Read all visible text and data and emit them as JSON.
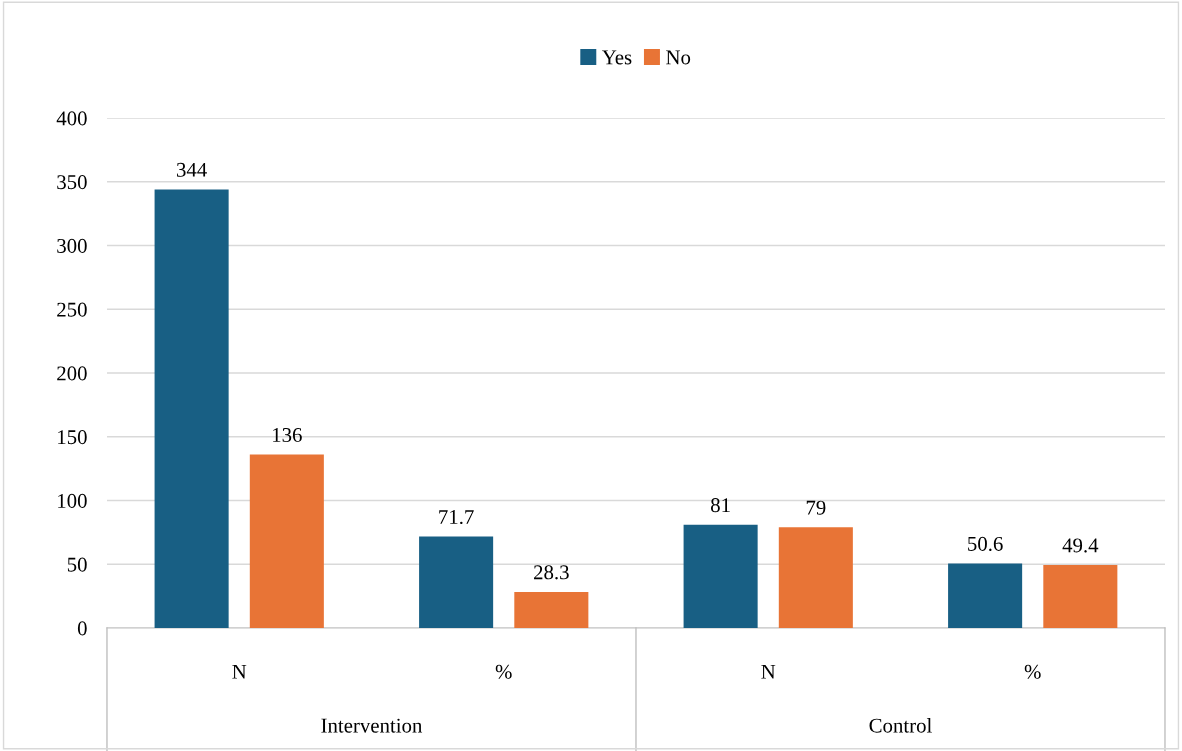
{
  "chart_data": {
    "type": "bar",
    "categories": [
      "N",
      "%",
      "N",
      "%"
    ],
    "series": [
      {
        "name": "Yes",
        "color": "#185f84",
        "values": [
          344,
          71.7,
          81,
          50.6
        ]
      },
      {
        "name": "No",
        "color": "#e87436",
        "values": [
          136,
          28.3,
          79,
          49.4
        ]
      }
    ],
    "ylim": [
      0,
      400
    ],
    "yticks": [
      0,
      50,
      100,
      150,
      200,
      250,
      300,
      350,
      400
    ],
    "grid": "y",
    "legend": "top",
    "data_labels": true,
    "annotations": [
      "Intervention",
      "Control"
    ]
  }
}
